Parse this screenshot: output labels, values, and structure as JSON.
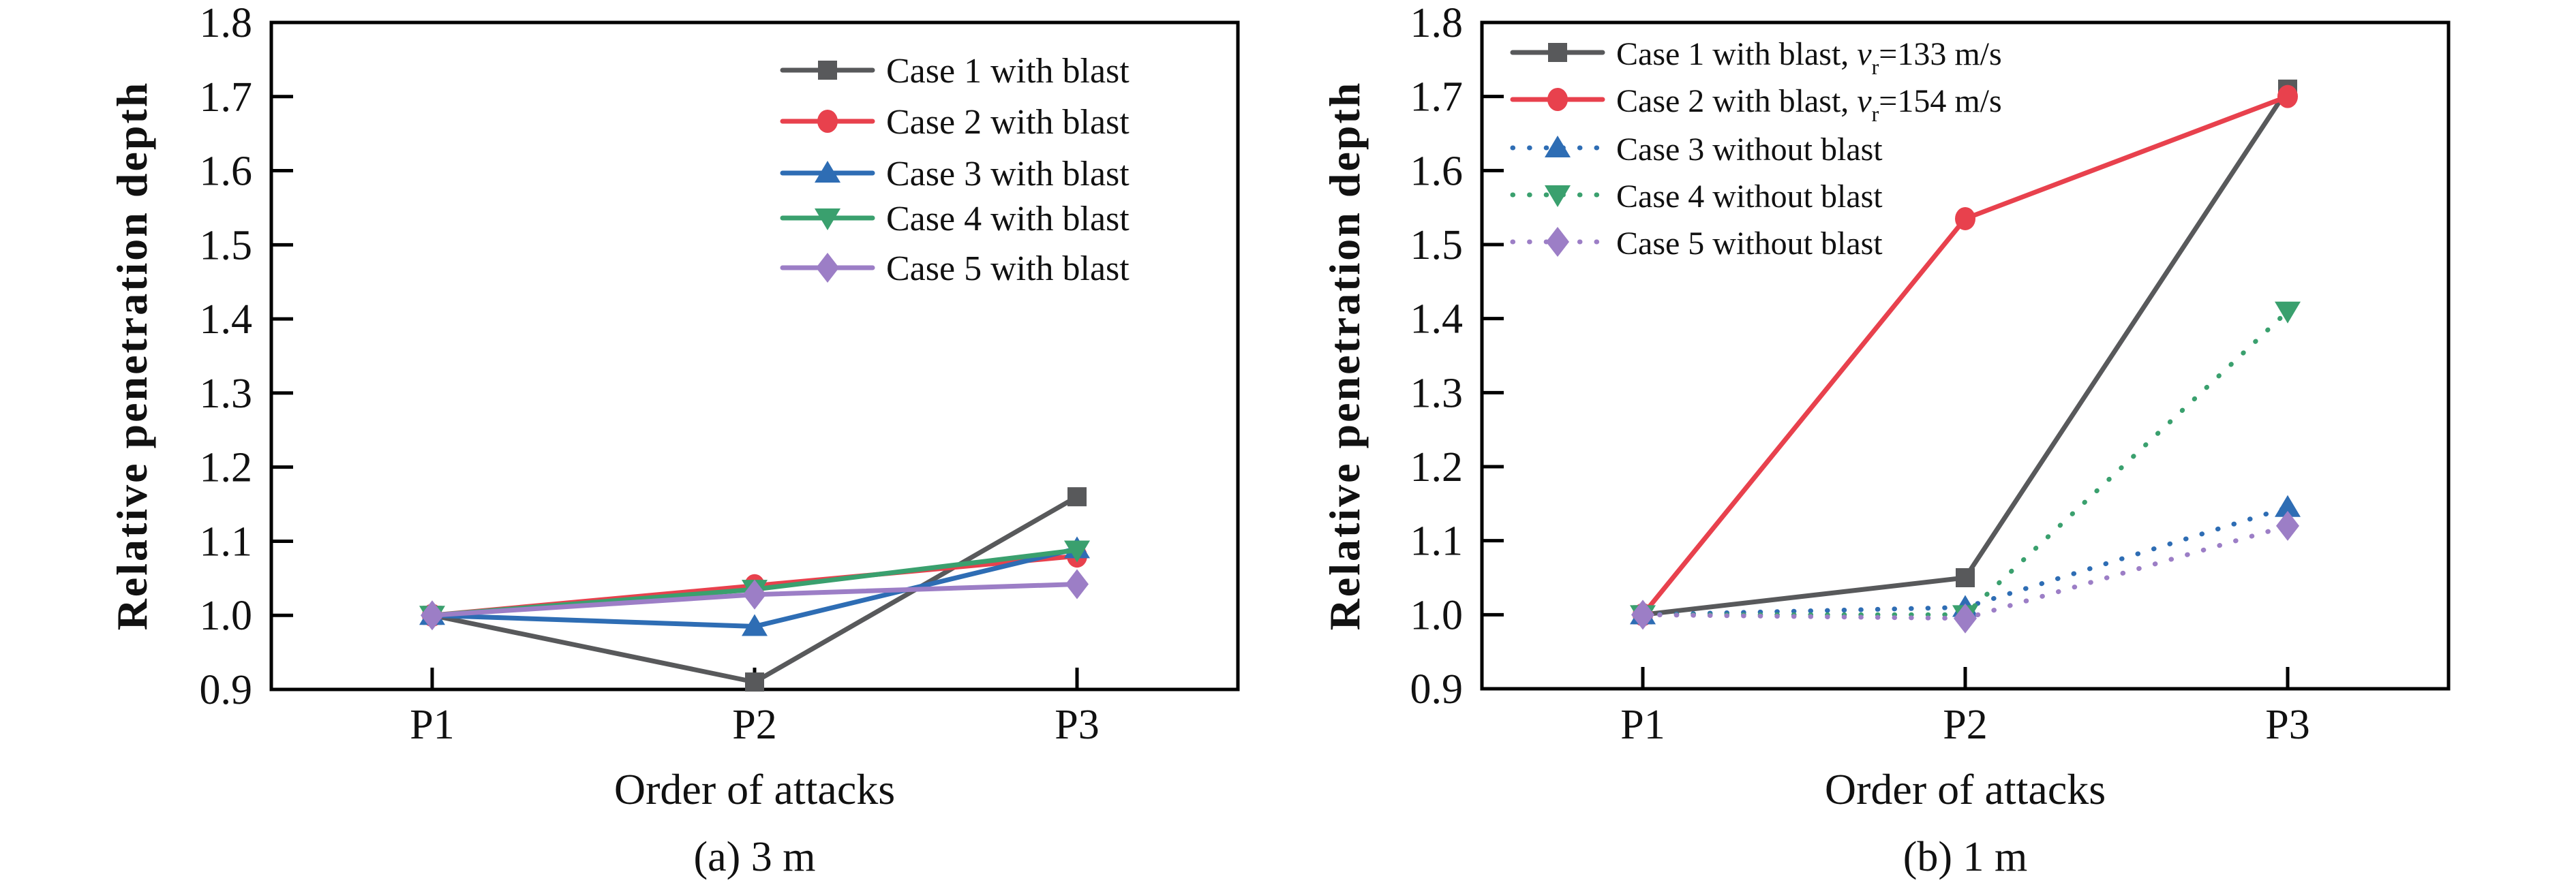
{
  "chart_data": [
    {
      "type": "line",
      "title": "(a) 3 m",
      "xlabel": "Order of attacks",
      "ylabel": "Relative penetration depth",
      "categories": [
        "P1",
        "P2",
        "P3"
      ],
      "ylim": [
        0.9,
        1.8
      ],
      "ytick_labels": [
        "0.9",
        "1.0",
        "1.1",
        "1.2",
        "1.3",
        "1.4",
        "1.5",
        "1.6",
        "1.7",
        "1.8"
      ],
      "grid": false,
      "legend_position": "top-right-inside",
      "series": [
        {
          "name": "Case 1 with blast",
          "label_parts": [
            {
              "t": "Case 1 with blast"
            }
          ],
          "color": "#58595b",
          "line": "solid",
          "marker": "square",
          "values": [
            1.0,
            0.91,
            1.16
          ]
        },
        {
          "name": "Case 2 with blast",
          "label_parts": [
            {
              "t": "Case 2 with blast"
            }
          ],
          "color": "#e8414d",
          "line": "solid",
          "marker": "circle",
          "values": [
            1.0,
            1.04,
            1.08
          ]
        },
        {
          "name": "Case 3 with blast",
          "label_parts": [
            {
              "t": "Case 3 with blast"
            }
          ],
          "color": "#2e6db4",
          "line": "solid",
          "marker": "triangle-up",
          "values": [
            1.0,
            0.985,
            1.09
          ]
        },
        {
          "name": "Case 4 with blast",
          "label_parts": [
            {
              "t": "Case 4 with blast"
            }
          ],
          "color": "#3aa06e",
          "line": "solid",
          "marker": "triangle-down",
          "values": [
            1.0,
            1.035,
            1.088
          ]
        },
        {
          "name": "Case 5 with blast",
          "label_parts": [
            {
              "t": "Case 5 with blast"
            }
          ],
          "color": "#9c7ec6",
          "line": "solid",
          "marker": "diamond",
          "values": [
            1.0,
            1.028,
            1.042
          ]
        }
      ]
    },
    {
      "type": "line",
      "title": "(b) 1 m",
      "xlabel": "Order of attacks",
      "ylabel": "Relative penetration depth",
      "categories": [
        "P1",
        "P2",
        "P3"
      ],
      "ylim": [
        0.9,
        1.8
      ],
      "ytick_labels": [
        "0.9",
        "1.0",
        "1.1",
        "1.2",
        "1.3",
        "1.4",
        "1.5",
        "1.6",
        "1.7",
        "1.8"
      ],
      "grid": false,
      "legend_position": "top-left-inside",
      "series": [
        {
          "name": "Case 1 with blast, vr=133 m/s",
          "label_parts": [
            {
              "t": "Case 1 with blast, "
            },
            {
              "t": "v",
              "style": "italic"
            },
            {
              "t": "r",
              "style": "sub"
            },
            {
              "t": "=133 m/s"
            }
          ],
          "color": "#58595b",
          "line": "solid",
          "marker": "square",
          "values": [
            1.0,
            1.05,
            1.71
          ]
        },
        {
          "name": "Case 2 with blast, vr=154 m/s",
          "label_parts": [
            {
              "t": "Case 2 with blast, "
            },
            {
              "t": "v",
              "style": "italic"
            },
            {
              "t": "r",
              "style": "sub"
            },
            {
              "t": "=154 m/s"
            }
          ],
          "color": "#e8414d",
          "line": "solid",
          "marker": "circle",
          "values": [
            1.0,
            1.535,
            1.7
          ]
        },
        {
          "name": "Case 3 without blast",
          "label_parts": [
            {
              "t": "Case 3 without blast"
            }
          ],
          "color": "#2e6db4",
          "line": "dotted",
          "marker": "triangle-up",
          "values": [
            1.0,
            1.01,
            1.145
          ]
        },
        {
          "name": "Case 4 without blast",
          "label_parts": [
            {
              "t": "Case 4 without blast"
            }
          ],
          "color": "#3aa06e",
          "line": "dotted",
          "marker": "triangle-down",
          "values": [
            1.0,
            1.0,
            1.41
          ]
        },
        {
          "name": "Case 5 without blast",
          "label_parts": [
            {
              "t": "Case 5 without blast"
            }
          ],
          "color": "#9c7ec6",
          "line": "dotted",
          "marker": "diamond",
          "values": [
            1.0,
            0.995,
            1.12
          ]
        }
      ]
    }
  ]
}
